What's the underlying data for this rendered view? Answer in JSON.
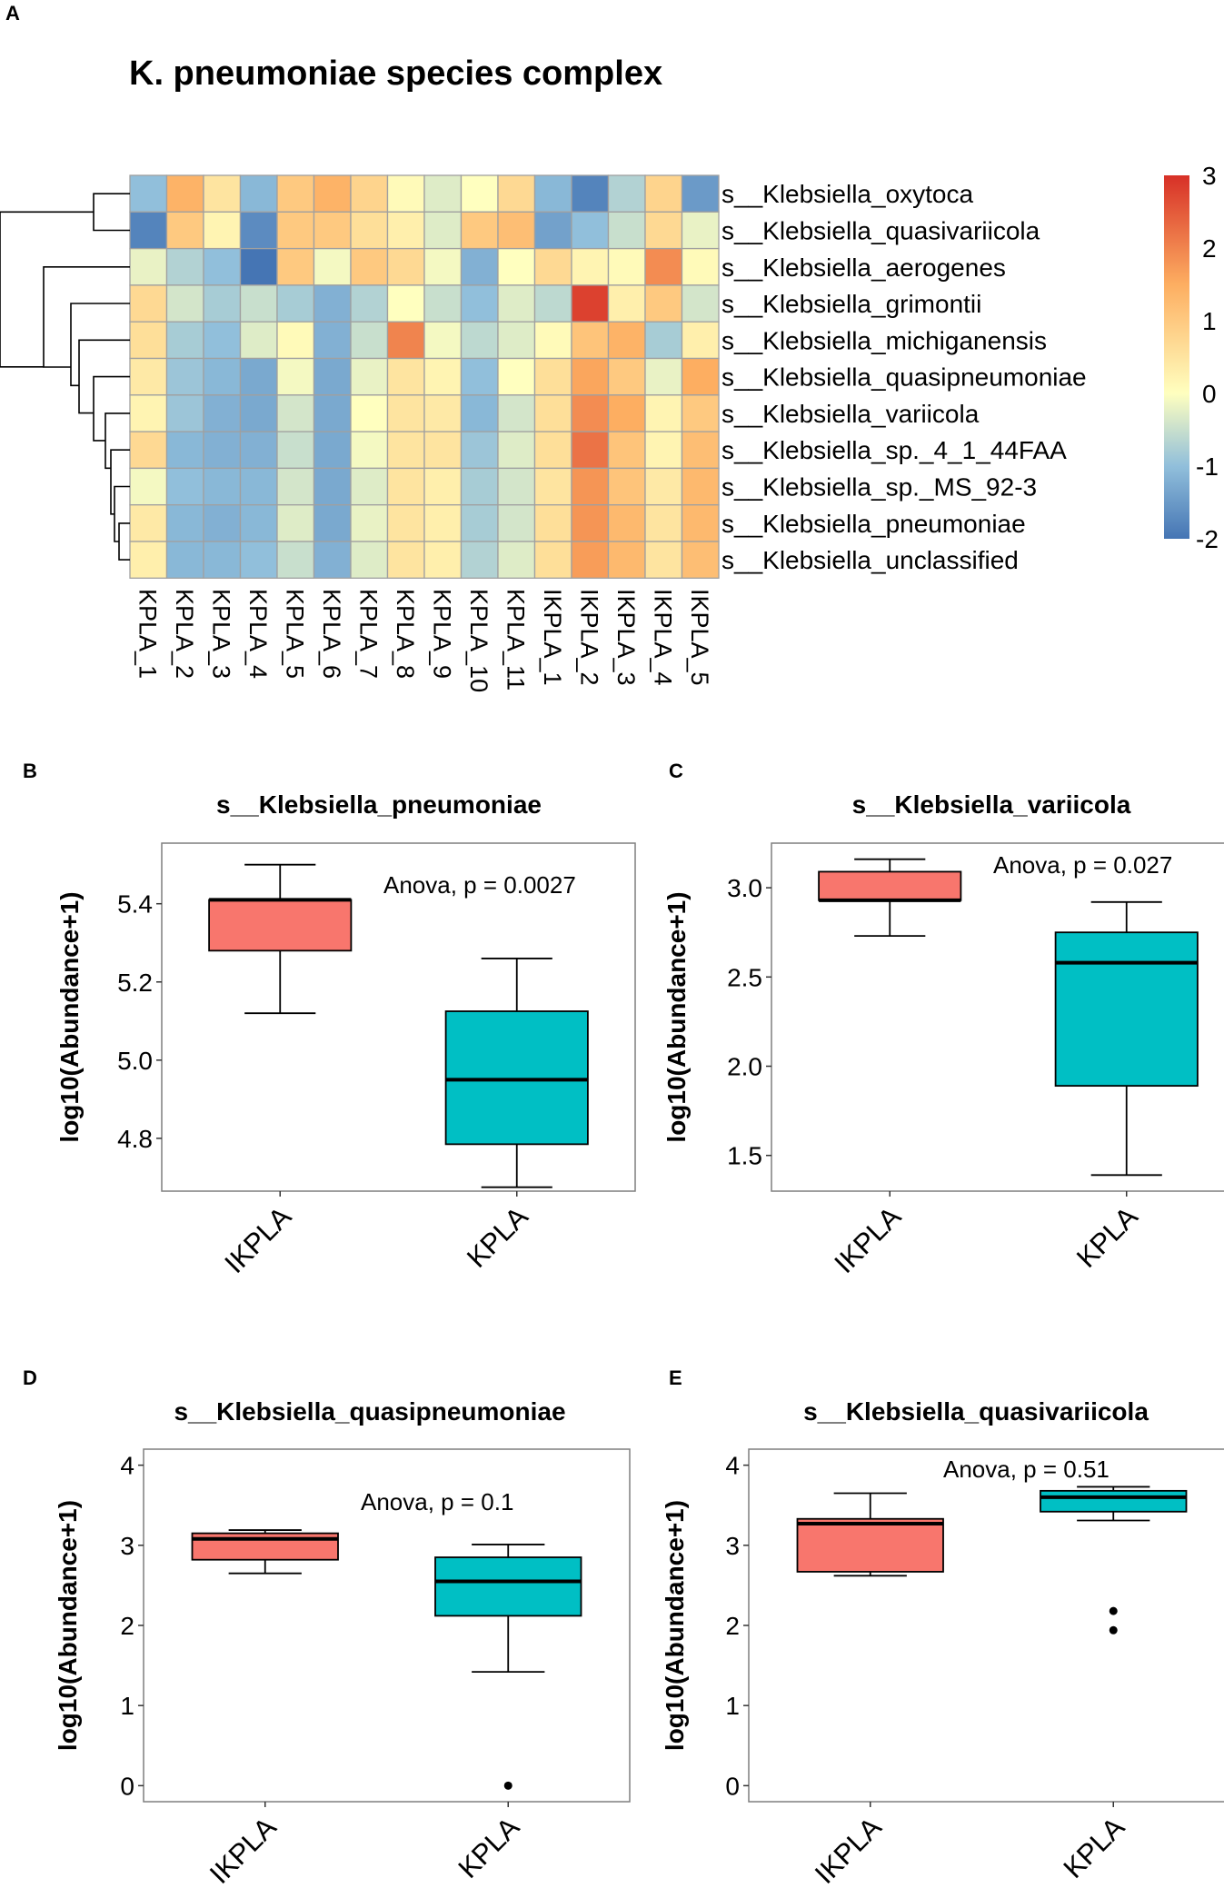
{
  "colors": {
    "low": "#4575b4",
    "mid_low": "#91bfdb",
    "mid": "#ffffbf",
    "mid_high": "#fdae61",
    "high": "#d73027",
    "grid": "#a0a0a0",
    "ikpla_fill": "#f8766d",
    "kpla_fill": "#00bfc4",
    "panel_border": "#7f7f7f"
  },
  "heatmap": {
    "panel_letter": "A",
    "title": "K. pneumoniae species complex",
    "columns": [
      "KPLA_1",
      "KPLA_2",
      "KPLA_3",
      "KPLA_4",
      "KPLA_5",
      "KPLA_6",
      "KPLA_7",
      "KPLA_8",
      "KPLA_9",
      "KPLA_10",
      "KPLA_11",
      "IKPLA_1",
      "IKPLA_2",
      "IKPLA_3",
      "IKPLA_4",
      "IKPLA_5"
    ],
    "rows": [
      "s__Klebsiella_oxytoca",
      "s__Klebsiella_quasivariicola",
      "s__Klebsiella_aerogenes",
      "s__Klebsiella_grimontii",
      "s__Klebsiella_michiganensis",
      "s__Klebsiella_quasipneumoniae",
      "s__Klebsiella_variicola",
      "s__Klebsiella_sp._4_1_44FAA",
      "s__Klebsiella_sp._MS_92-3",
      "s__Klebsiella_pneumoniae",
      "s__Klebsiella_unclassified"
    ],
    "legend_ticks": [
      "3",
      "2",
      "1",
      "0",
      "-1",
      "-2"
    ],
    "legend_range": [
      -2,
      3
    ]
  },
  "chart_data": [
    {
      "type": "heatmap",
      "title": "K. pneumoniae species complex",
      "x_categories": [
        "KPLA_1",
        "KPLA_2",
        "KPLA_3",
        "KPLA_4",
        "KPLA_5",
        "KPLA_6",
        "KPLA_7",
        "KPLA_8",
        "KPLA_9",
        "KPLA_10",
        "KPLA_11",
        "IKPLA_1",
        "IKPLA_2",
        "IKPLA_3",
        "IKPLA_4",
        "IKPLA_5"
      ],
      "y_categories": [
        "s__Klebsiella_oxytoca",
        "s__Klebsiella_quasivariicola",
        "s__Klebsiella_aerogenes",
        "s__Klebsiella_grimontii",
        "s__Klebsiella_michiganensis",
        "s__Klebsiella_quasipneumoniae",
        "s__Klebsiella_variicola",
        "s__Klebsiella_sp._4_1_44FAA",
        "s__Klebsiella_sp._MS_92-3",
        "s__Klebsiella_pneumoniae",
        "s__Klebsiella_unclassified"
      ],
      "values": [
        [
          -1.0,
          1.4,
          0.5,
          -1.1,
          1.0,
          1.4,
          0.8,
          0.1,
          -0.3,
          0.0,
          0.7,
          -1.1,
          -1.8,
          -0.7,
          0.8,
          -1.5
        ],
        [
          -1.8,
          1.0,
          0.2,
          -1.7,
          1.0,
          1.0,
          0.6,
          0.3,
          -0.3,
          1.0,
          1.2,
          -1.4,
          -1.0,
          -0.5,
          0.7,
          -0.2
        ],
        [
          -0.2,
          -0.7,
          -1.0,
          -2.0,
          1.0,
          -0.1,
          1.0,
          0.7,
          -0.1,
          -1.2,
          0.0,
          0.7,
          0.2,
          0.1,
          1.9,
          0.1
        ],
        [
          0.7,
          -0.4,
          -0.8,
          -0.5,
          -0.8,
          -1.2,
          -0.7,
          0.0,
          -0.5,
          -1.0,
          -0.3,
          -0.6,
          2.8,
          0.3,
          1.0,
          -0.4
        ],
        [
          0.6,
          -0.8,
          -1.0,
          -0.3,
          0.1,
          -1.2,
          -0.5,
          2.0,
          -0.1,
          -0.6,
          -0.3,
          0.1,
          1.1,
          1.4,
          -0.8,
          0.3
        ],
        [
          0.4,
          -0.9,
          -1.1,
          -1.3,
          -0.1,
          -1.3,
          -0.2,
          0.5,
          0.2,
          -1.0,
          0.0,
          0.6,
          1.6,
          1.0,
          -0.2,
          1.5
        ],
        [
          0.2,
          -0.9,
          -1.2,
          -1.3,
          -0.4,
          -1.3,
          0.0,
          0.5,
          0.4,
          -1.1,
          -0.4,
          0.6,
          1.9,
          1.5,
          0.2,
          1.0
        ],
        [
          0.7,
          -1.1,
          -1.2,
          -1.2,
          -0.5,
          -1.3,
          -0.1,
          0.5,
          0.5,
          -0.9,
          -0.3,
          0.6,
          2.2,
          1.1,
          0.2,
          1.2
        ],
        [
          -0.1,
          -1.0,
          -1.1,
          -1.1,
          -0.4,
          -1.3,
          -0.3,
          0.5,
          0.3,
          -0.8,
          -0.4,
          0.5,
          1.8,
          1.1,
          0.4,
          1.3
        ],
        [
          0.4,
          -1.1,
          -1.2,
          -1.1,
          -0.3,
          -1.3,
          -0.2,
          0.5,
          0.3,
          -0.8,
          -0.4,
          0.6,
          1.8,
          1.3,
          0.5,
          1.3
        ],
        [
          0.3,
          -1.1,
          -1.1,
          -1.0,
          -0.5,
          -1.2,
          -0.3,
          0.5,
          0.3,
          -0.7,
          -0.3,
          0.6,
          1.7,
          1.3,
          0.5,
          1.2
        ]
      ],
      "colorbar": {
        "min": -2,
        "max": 3,
        "ticks": [
          3,
          2,
          1,
          0,
          -1,
          -2
        ]
      },
      "row_dendrogram": true
    },
    {
      "type": "boxplot",
      "panel": "B",
      "title": "s__Klebsiella_pneumoniae",
      "ylabel": "log10(Abundance+1)",
      "categories": [
        "IKPLA",
        "KPLA"
      ],
      "ylim": [
        4.665,
        5.555
      ],
      "yticks": [
        "4.8",
        "5.0",
        "5.2",
        "5.4"
      ],
      "annotation": "Anova, p = 0.0027",
      "boxes": [
        {
          "group": "IKPLA",
          "min": 5.12,
          "q1": 5.28,
          "median": 5.41,
          "q3": 5.41,
          "max": 5.5,
          "outliers": []
        },
        {
          "group": "KPLA",
          "min": 4.675,
          "q1": 4.785,
          "median": 4.95,
          "q3": 5.125,
          "max": 5.26,
          "outliers": []
        }
      ]
    },
    {
      "type": "boxplot",
      "panel": "C",
      "title": "s__Klebsiella_variicola",
      "ylabel": "log10(Abundance+1)",
      "categories": [
        "IKPLA",
        "KPLA"
      ],
      "ylim": [
        1.3,
        3.25
      ],
      "yticks": [
        "1.5",
        "2.0",
        "2.5",
        "3.0"
      ],
      "annotation": "Anova, p = 0.027",
      "boxes": [
        {
          "group": "IKPLA",
          "min": 2.73,
          "q1": 2.93,
          "median": 2.93,
          "q3": 3.09,
          "max": 3.16,
          "outliers": []
        },
        {
          "group": "KPLA",
          "min": 1.39,
          "q1": 1.89,
          "median": 2.58,
          "q3": 2.75,
          "max": 2.92,
          "outliers": []
        }
      ]
    },
    {
      "type": "boxplot",
      "panel": "D",
      "title": "s__Klebsiella_quasipneumoniae",
      "ylabel": "log10(Abundance+1)",
      "categories": [
        "IKPLA",
        "KPLA"
      ],
      "ylim": [
        -0.2,
        4.2
      ],
      "yticks": [
        "0",
        "1",
        "2",
        "3",
        "4"
      ],
      "annotation": "Anova, p = 0.1",
      "boxes": [
        {
          "group": "IKPLA",
          "min": 2.65,
          "q1": 2.82,
          "median": 3.08,
          "q3": 3.15,
          "max": 3.19,
          "outliers": []
        },
        {
          "group": "KPLA",
          "min": 1.42,
          "q1": 2.12,
          "median": 2.55,
          "q3": 2.85,
          "max": 3.01,
          "outliers": [
            0.0
          ]
        }
      ]
    },
    {
      "type": "boxplot",
      "panel": "E",
      "title": "s__Klebsiella_quasivariicola",
      "ylabel": "log10(Abundance+1)",
      "categories": [
        "IKPLA",
        "KPLA"
      ],
      "ylim": [
        -0.2,
        4.2
      ],
      "yticks": [
        "0",
        "1",
        "2",
        "3",
        "4"
      ],
      "annotation": "Anova, p = 0.51",
      "boxes": [
        {
          "group": "IKPLA",
          "min": 2.62,
          "q1": 2.67,
          "median": 3.27,
          "q3": 3.33,
          "max": 3.65,
          "outliers": []
        },
        {
          "group": "KPLA",
          "min": 3.31,
          "q1": 3.42,
          "median": 3.6,
          "q3": 3.68,
          "max": 3.73,
          "outliers": [
            2.18,
            1.94
          ]
        }
      ]
    }
  ]
}
